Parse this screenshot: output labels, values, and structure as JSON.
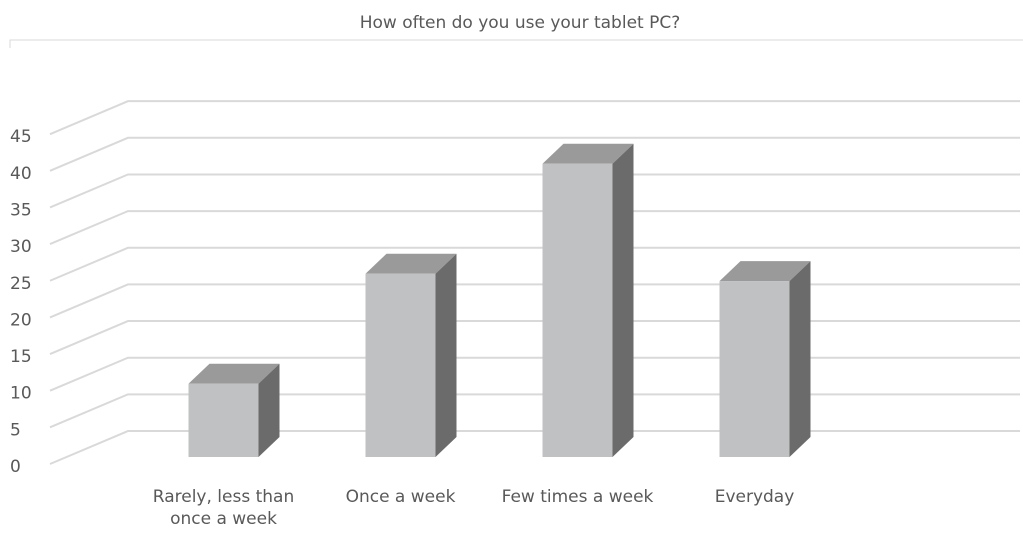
{
  "chart_data": {
    "type": "bar3d",
    "title": "How often do you use your tablet PC?",
    "categories": [
      "Rarely, less than once a week",
      "Once a week",
      "Few times a week",
      "Everyday"
    ],
    "values": [
      10,
      25,
      40,
      24
    ],
    "color": "#c0c1c3",
    "ylim": [
      0,
      45
    ],
    "yticks": [
      0,
      5,
      10,
      15,
      20,
      25,
      30,
      35,
      40,
      45
    ],
    "grid": true
  }
}
